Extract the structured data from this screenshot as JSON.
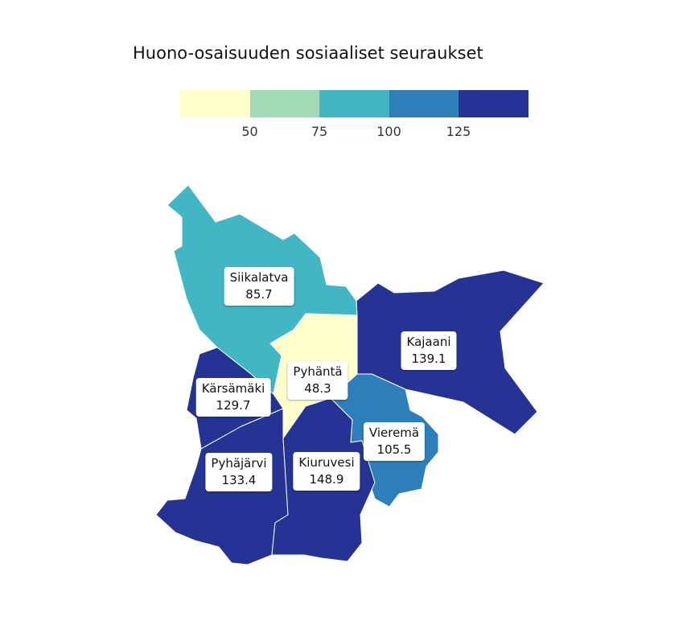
{
  "title": "Huono-osaisuuden sosiaaliset seuraukset",
  "legend": {
    "colors": [
      "#ffffcc",
      "#a1dab4",
      "#41b6c4",
      "#2c7fb8",
      "#253494"
    ],
    "breaks": [
      "50",
      "75",
      "100",
      "125"
    ]
  },
  "regions": [
    {
      "name": "Siikalatva",
      "value": "85.7",
      "color": "#41b6c4"
    },
    {
      "name": "Pyhäntä",
      "value": "48.3",
      "color": "#ffffcc"
    },
    {
      "name": "Kajaani",
      "value": "139.1",
      "color": "#253494"
    },
    {
      "name": "Kärsämäki",
      "value": "129.7",
      "color": "#253494"
    },
    {
      "name": "Vieremä",
      "value": "105.5",
      "color": "#2c7fb8"
    },
    {
      "name": "Pyhäjärvi",
      "value": "133.4",
      "color": "#253494"
    },
    {
      "name": "Kiuruvesi",
      "value": "148.9",
      "color": "#253494"
    }
  ]
}
